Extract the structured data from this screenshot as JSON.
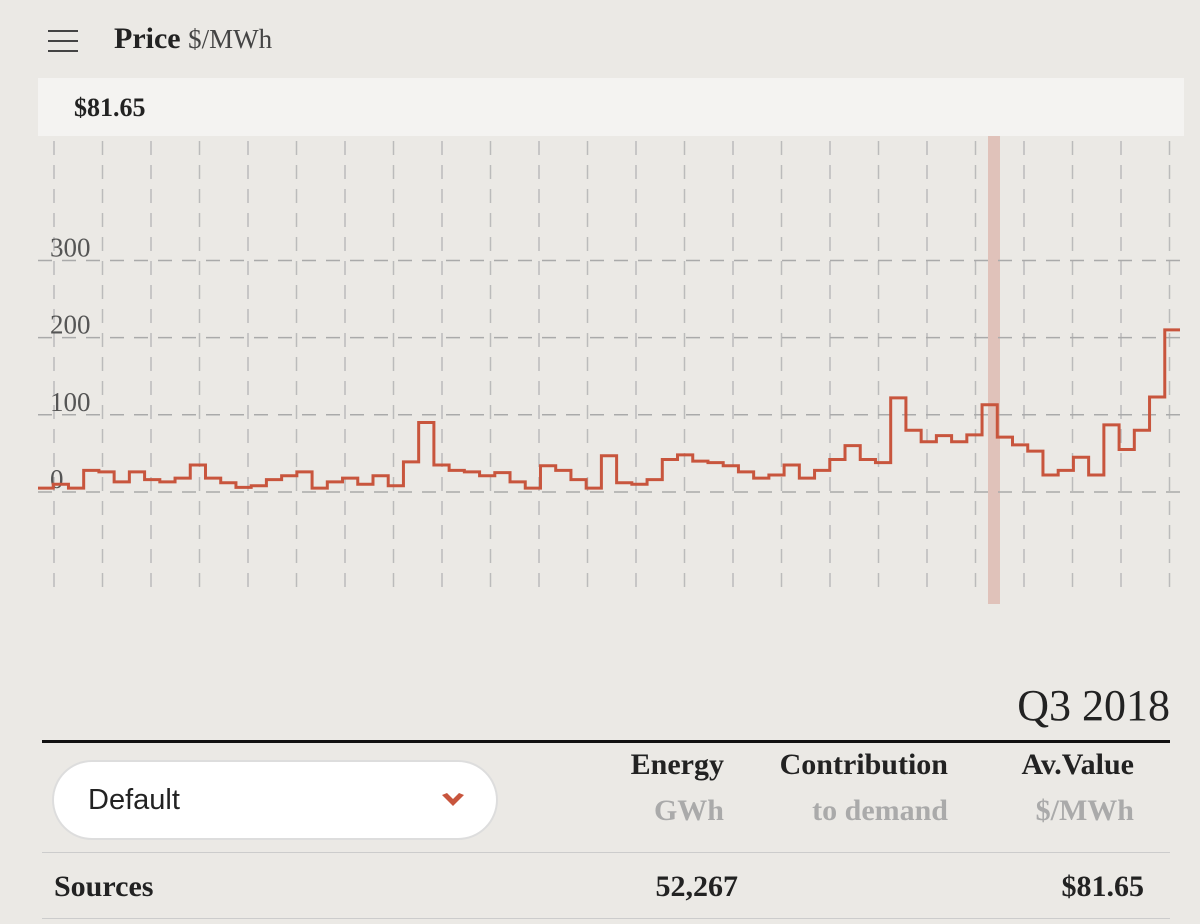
{
  "header": {
    "title": "Price",
    "unit": "$/MWh"
  },
  "tooltip": {
    "value": "$81.65"
  },
  "chart_data": {
    "type": "line",
    "step": true,
    "color": "#c8553d",
    "values": [
      5,
      10,
      5,
      28,
      26,
      13,
      26,
      16,
      13,
      18,
      35,
      18,
      12,
      6,
      8,
      16,
      21,
      26,
      5,
      13,
      18,
      10,
      21,
      8,
      39,
      90,
      35,
      28,
      26,
      21,
      25,
      13,
      5,
      34,
      28,
      16,
      5,
      47,
      12,
      10,
      16,
      42,
      48,
      40,
      38,
      34,
      26,
      18,
      22,
      35,
      18,
      28,
      42,
      60,
      42,
      38,
      122,
      80,
      65,
      73,
      65,
      74,
      113,
      71,
      61,
      53,
      22,
      28,
      45,
      22,
      87,
      55,
      80,
      123,
      210
    ],
    "ylim": [
      -140,
      460
    ],
    "yticks": [
      0,
      100,
      200,
      300
    ],
    "grid": true
  },
  "period": "Q3 2018",
  "table": {
    "dropdown": "Default",
    "columns": [
      {
        "title": "Energy",
        "unit": "GWh"
      },
      {
        "title": "Contribution",
        "unit": "to demand"
      },
      {
        "title": "Av.Value",
        "unit": "$/MWh"
      }
    ],
    "rows": [
      [
        "Sources",
        "52,267",
        "$81.65"
      ]
    ]
  }
}
